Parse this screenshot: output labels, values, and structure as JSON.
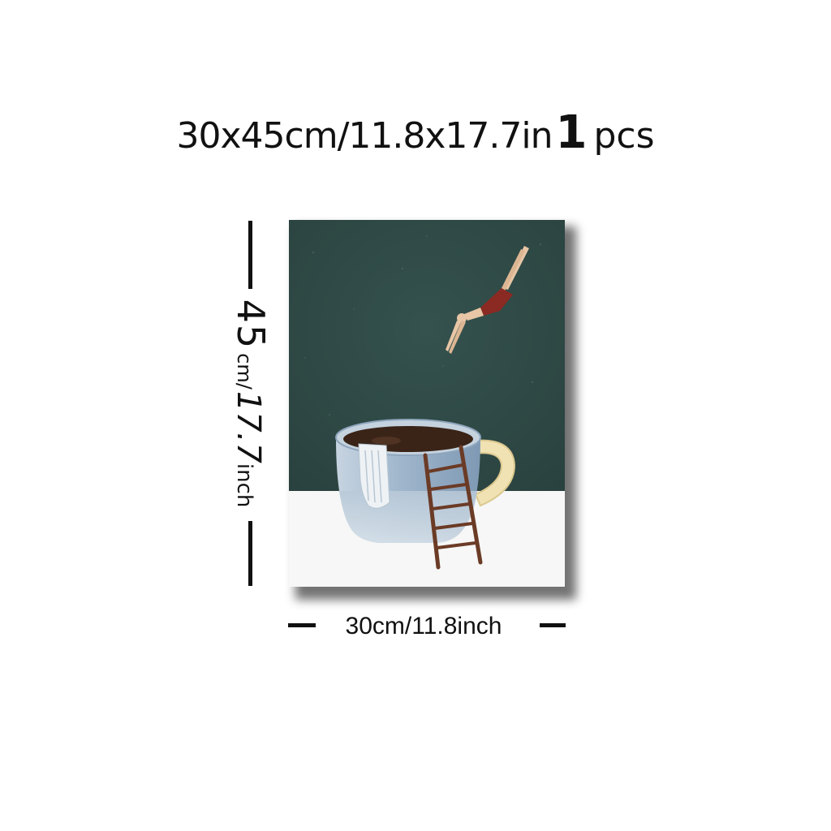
{
  "headline": {
    "dimensions": "30x45cm/11.8x17.7in",
    "quantity": "1",
    "unit": "pcs"
  },
  "height_label": {
    "value": "45",
    "unit": "cm/",
    "value_inch": "17.7",
    "unit_inch": "inch"
  },
  "width_label": {
    "text": "30cm/11.8inch"
  },
  "artwork": {
    "subject": "diver-jumping-into-coffee-cup-icon",
    "colors": {
      "wall": "#2f4a47",
      "table": "#f7f8f7",
      "cup": "#9db3c8",
      "coffee": "#3a2418",
      "handle": "#f1e2b4",
      "ladder": "#6b3b26",
      "swimsuit": "#8a2a22",
      "skin": "#e8c6a6"
    }
  }
}
